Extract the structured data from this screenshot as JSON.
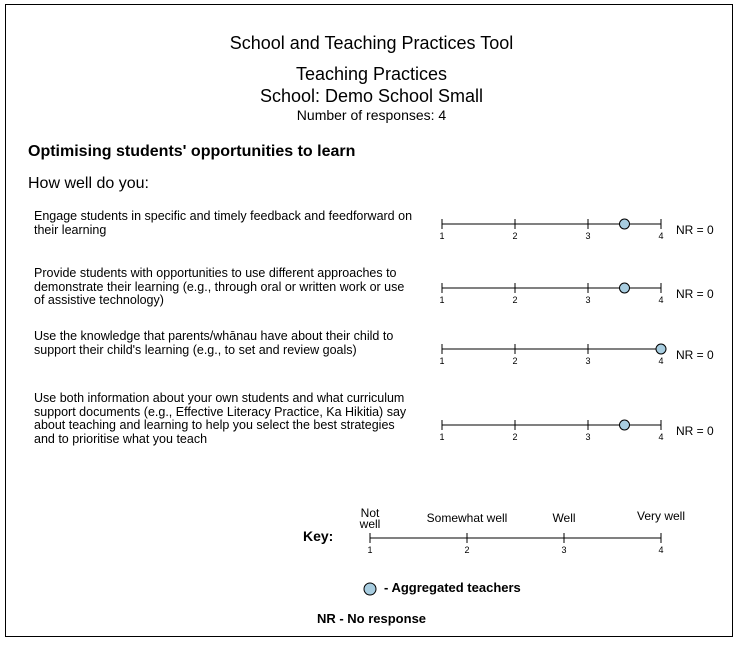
{
  "header": {
    "title": "School and Teaching Practices Tool",
    "subtitle": "Teaching Practices",
    "school": "School: Demo School Small",
    "responses": "Number of responses: 4"
  },
  "section": {
    "heading": "Optimising students' opportunities to learn",
    "prompt": "How well do you:"
  },
  "chart_data": {
    "type": "scatter",
    "scale": [
      1,
      2,
      3,
      4
    ],
    "xlim": [
      1,
      4
    ],
    "items": [
      {
        "text": "Engage students in specific and timely feedback and feedforward on their learning",
        "value": 3.5,
        "nr": "NR = 0"
      },
      {
        "text": "Provide students with opportunities to use different approaches to demonstrate their learning (e.g., through oral or written work or use of assistive technology)",
        "value": 3.5,
        "nr": "NR = 0"
      },
      {
        "text": "Use the knowledge that parents/whānau have about their child to support their child's learning (e.g., to set and review goals)",
        "value": 4.0,
        "nr": "NR = 0"
      },
      {
        "text": "Use both information about your own students and what curriculum support documents (e.g., Effective Literacy Practice, Ka Hikitia) say about teaching and learning to help you select the best strategies and to prioritise what you teach",
        "value": 3.5,
        "nr": "NR = 0"
      }
    ],
    "key": {
      "label": "Key:",
      "categories": [
        "Not well",
        "Somewhat well",
        "Well",
        "Very well"
      ],
      "ticks": [
        "1",
        "2",
        "3",
        "4"
      ]
    },
    "legend": {
      "marker_label": "- Aggregated teachers",
      "marker_color": "#a8cde0"
    },
    "note": "NR - No response"
  }
}
